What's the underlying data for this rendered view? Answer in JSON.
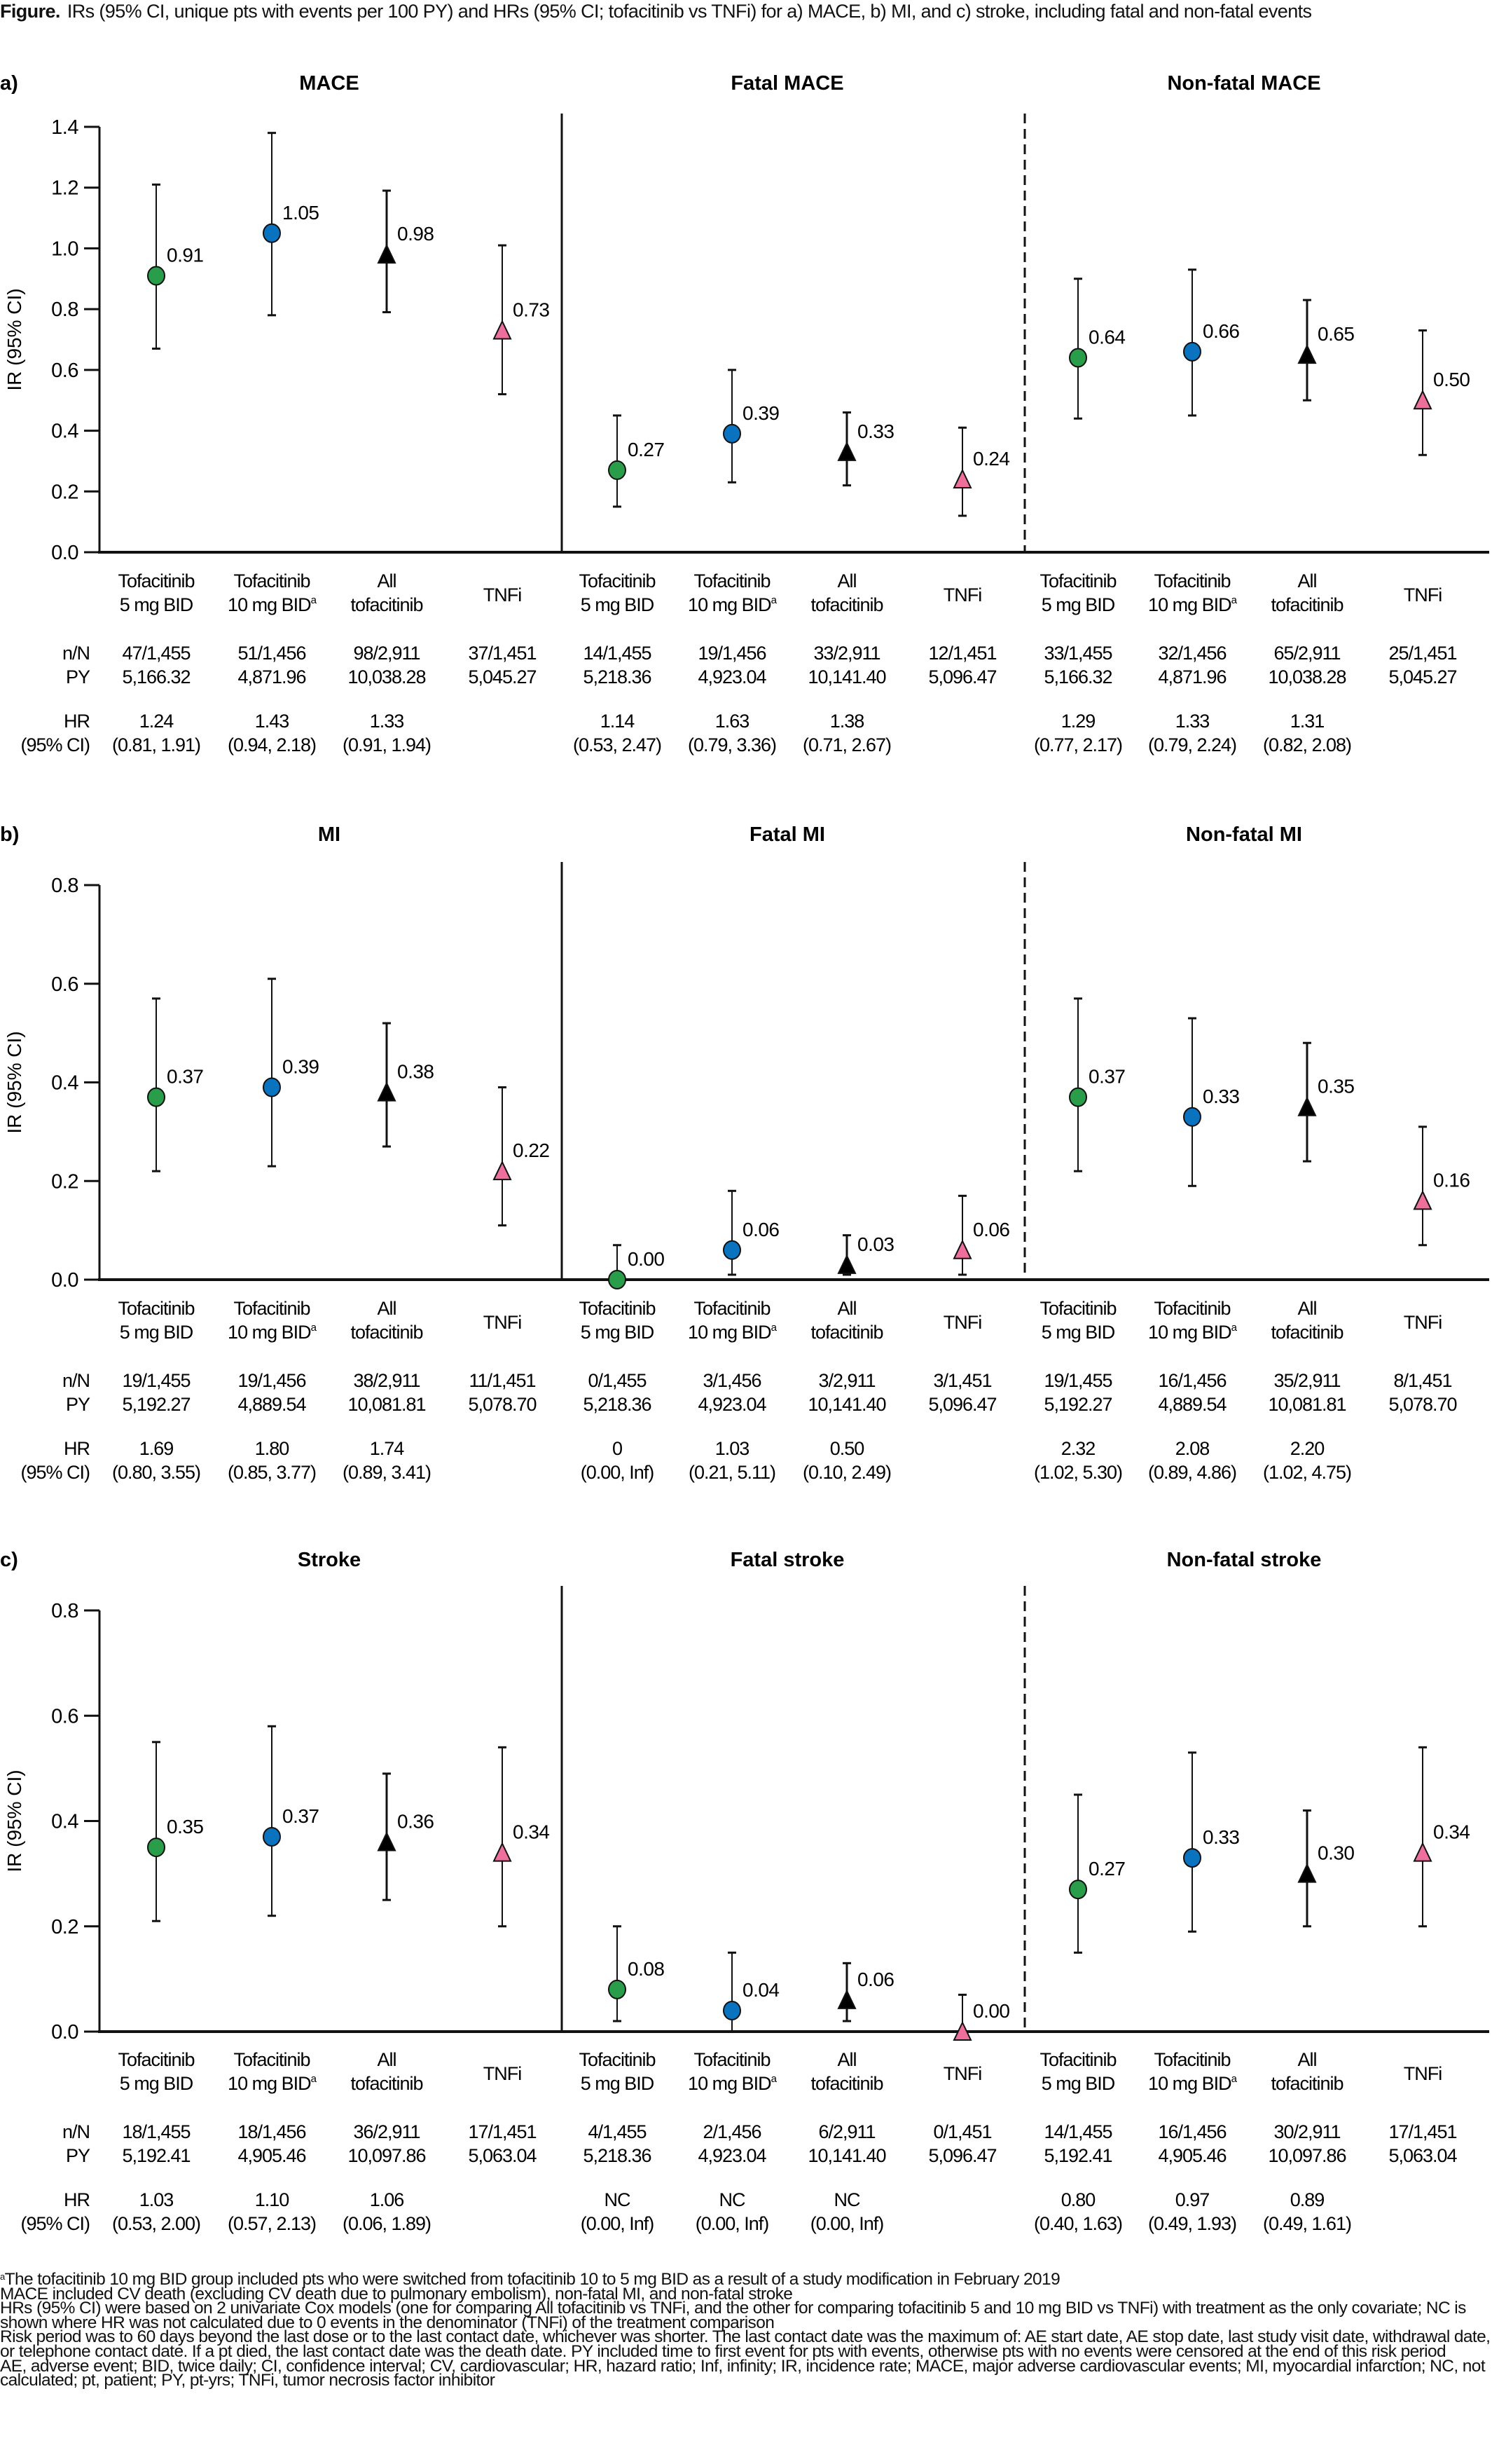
{
  "figure": {
    "label": "Figure.",
    "caption": "IRs (95% CI, unique pts with events per 100 PY) and HRs (95% CI; tofacitinib vs TNFi) for a) MACE, b) MI, and c) stroke, including fatal and non-fatal events"
  },
  "colors": {
    "tofa5": "#2a9d4a",
    "tofa10": "#0a73c0",
    "all_tofa": "#000000",
    "tnfi": "#ee6f9c"
  },
  "row_labels": {
    "nN": "n/N",
    "py": "PY",
    "hr": "HR",
    "ci": "(95% CI)"
  },
  "groups": [
    {
      "key": "tofa5",
      "line1": "Tofacitinib",
      "line2": "5 mg BID",
      "sup": "",
      "marker": "circle"
    },
    {
      "key": "tofa10",
      "line1": "Tofacitinib",
      "line2": "10 mg BID",
      "sup": "a",
      "marker": "circle"
    },
    {
      "key": "all_tofa",
      "line1": "All",
      "line2": "tofacitinib",
      "sup": "",
      "marker": "triangle"
    },
    {
      "key": "tnfi",
      "line1": "",
      "line2": "TNFi",
      "sup": "",
      "marker": "triangle"
    }
  ],
  "chart_data": [
    {
      "type": "scatter",
      "panel": "a)",
      "ylabel": "IR (95% CI)",
      "ylim": [
        0,
        1.4
      ],
      "yticks": [
        "0.0",
        "0.2",
        "0.4",
        "0.6",
        "0.8",
        "1.0",
        "1.2",
        "1.4"
      ],
      "grid": false,
      "subplots": [
        {
          "title": "MACE",
          "points": [
            {
              "group": "tofa5",
              "ir": 0.91,
              "label": "0.91",
              "lo": 0.67,
              "hi": 1.21,
              "nN": "47/1,455",
              "py": "5,166.32",
              "hr": "1.24",
              "ci": "(0.81, 1.91)"
            },
            {
              "group": "tofa10",
              "ir": 1.05,
              "label": "1.05",
              "lo": 0.78,
              "hi": 1.38,
              "nN": "51/1,456",
              "py": "4,871.96",
              "hr": "1.43",
              "ci": "(0.94, 2.18)"
            },
            {
              "group": "all_tofa",
              "ir": 0.98,
              "label": "0.98",
              "lo": 0.79,
              "hi": 1.19,
              "nN": "98/2,911",
              "py": "10,038.28",
              "hr": "1.33",
              "ci": "(0.91, 1.94)"
            },
            {
              "group": "tnfi",
              "ir": 0.73,
              "label": "0.73",
              "lo": 0.52,
              "hi": 1.01,
              "nN": "37/1,451",
              "py": "5,045.27",
              "hr": "",
              "ci": ""
            }
          ]
        },
        {
          "title": "Fatal MACE",
          "points": [
            {
              "group": "tofa5",
              "ir": 0.27,
              "label": "0.27",
              "lo": 0.15,
              "hi": 0.45,
              "nN": "14/1,455",
              "py": "5,218.36",
              "hr": "1.14",
              "ci": "(0.53, 2.47)"
            },
            {
              "group": "tofa10",
              "ir": 0.39,
              "label": "0.39",
              "lo": 0.23,
              "hi": 0.6,
              "nN": "19/1,456",
              "py": "4,923.04",
              "hr": "1.63",
              "ci": "(0.79, 3.36)"
            },
            {
              "group": "all_tofa",
              "ir": 0.33,
              "label": "0.33",
              "lo": 0.22,
              "hi": 0.46,
              "nN": "33/2,911",
              "py": "10,141.40",
              "hr": "1.38",
              "ci": "(0.71, 2.67)"
            },
            {
              "group": "tnfi",
              "ir": 0.24,
              "label": "0.24",
              "lo": 0.12,
              "hi": 0.41,
              "nN": "12/1,451",
              "py": "5,096.47",
              "hr": "",
              "ci": ""
            }
          ]
        },
        {
          "title": "Non-fatal MACE",
          "points": [
            {
              "group": "tofa5",
              "ir": 0.64,
              "label": "0.64",
              "lo": 0.44,
              "hi": 0.9,
              "nN": "33/1,455",
              "py": "5,166.32",
              "hr": "1.29",
              "ci": "(0.77, 2.17)"
            },
            {
              "group": "tofa10",
              "ir": 0.66,
              "label": "0.66",
              "lo": 0.45,
              "hi": 0.93,
              "nN": "32/1,456",
              "py": "4,871.96",
              "hr": "1.33",
              "ci": "(0.79, 2.24)"
            },
            {
              "group": "all_tofa",
              "ir": 0.65,
              "label": "0.65",
              "lo": 0.5,
              "hi": 0.83,
              "nN": "65/2,911",
              "py": "10,038.28",
              "hr": "1.31",
              "ci": "(0.82, 2.08)"
            },
            {
              "group": "tnfi",
              "ir": 0.5,
              "label": "0.50",
              "lo": 0.32,
              "hi": 0.73,
              "nN": "25/1,451",
              "py": "5,045.27",
              "hr": "",
              "ci": ""
            }
          ]
        }
      ]
    },
    {
      "type": "scatter",
      "panel": "b)",
      "ylabel": "IR (95% CI)",
      "ylim": [
        0,
        0.8
      ],
      "yticks": [
        "0.0",
        "0.2",
        "0.4",
        "0.6",
        "0.8"
      ],
      "grid": false,
      "subplots": [
        {
          "title": "MI",
          "points": [
            {
              "group": "tofa5",
              "ir": 0.37,
              "label": "0.37",
              "lo": 0.22,
              "hi": 0.57,
              "nN": "19/1,455",
              "py": "5,192.27",
              "hr": "1.69",
              "ci": "(0.80, 3.55)"
            },
            {
              "group": "tofa10",
              "ir": 0.39,
              "label": "0.39",
              "lo": 0.23,
              "hi": 0.61,
              "nN": "19/1,456",
              "py": "4,889.54",
              "hr": "1.80",
              "ci": "(0.85, 3.77)"
            },
            {
              "group": "all_tofa",
              "ir": 0.38,
              "label": "0.38",
              "lo": 0.27,
              "hi": 0.52,
              "nN": "38/2,911",
              "py": "10,081.81",
              "hr": "1.74",
              "ci": "(0.89, 3.41)"
            },
            {
              "group": "tnfi",
              "ir": 0.22,
              "label": "0.22",
              "lo": 0.11,
              "hi": 0.39,
              "nN": "11/1,451",
              "py": "5,078.70",
              "hr": "",
              "ci": ""
            }
          ]
        },
        {
          "title": "Fatal MI",
          "points": [
            {
              "group": "tofa5",
              "ir": 0.0,
              "label": "0.00",
              "lo": 0.0,
              "hi": 0.07,
              "nN": "0/1,455",
              "py": "5,218.36",
              "hr": "0",
              "ci": "(0.00, Inf)"
            },
            {
              "group": "tofa10",
              "ir": 0.06,
              "label": "0.06",
              "lo": 0.01,
              "hi": 0.18,
              "nN": "3/1,456",
              "py": "4,923.04",
              "hr": "1.03",
              "ci": "(0.21, 5.11)"
            },
            {
              "group": "all_tofa",
              "ir": 0.03,
              "label": "0.03",
              "lo": 0.01,
              "hi": 0.09,
              "nN": "3/2,911",
              "py": "10,141.40",
              "hr": "0.50",
              "ci": "(0.10, 2.49)"
            },
            {
              "group": "tnfi",
              "ir": 0.06,
              "label": "0.06",
              "lo": 0.01,
              "hi": 0.17,
              "nN": "3/1,451",
              "py": "5,096.47",
              "hr": "",
              "ci": ""
            }
          ]
        },
        {
          "title": "Non-fatal MI",
          "points": [
            {
              "group": "tofa5",
              "ir": 0.37,
              "label": "0.37",
              "lo": 0.22,
              "hi": 0.57,
              "nN": "19/1,455",
              "py": "5,192.27",
              "hr": "2.32",
              "ci": "(1.02, 5.30)"
            },
            {
              "group": "tofa10",
              "ir": 0.33,
              "label": "0.33",
              "lo": 0.19,
              "hi": 0.53,
              "nN": "16/1,456",
              "py": "4,889.54",
              "hr": "2.08",
              "ci": "(0.89, 4.86)"
            },
            {
              "group": "all_tofa",
              "ir": 0.35,
              "label": "0.35",
              "lo": 0.24,
              "hi": 0.48,
              "nN": "35/2,911",
              "py": "10,081.81",
              "hr": "2.20",
              "ci": "(1.02, 4.75)"
            },
            {
              "group": "tnfi",
              "ir": 0.16,
              "label": "0.16",
              "lo": 0.07,
              "hi": 0.31,
              "nN": "8/1,451",
              "py": "5,078.70",
              "hr": "",
              "ci": ""
            }
          ]
        }
      ]
    },
    {
      "type": "scatter",
      "panel": "c)",
      "ylabel": "IR (95% CI)",
      "ylim": [
        0,
        0.8
      ],
      "yticks": [
        "0.0",
        "0.2",
        "0.4",
        "0.6",
        "0.8"
      ],
      "grid": false,
      "subplots": [
        {
          "title": "Stroke",
          "points": [
            {
              "group": "tofa5",
              "ir": 0.35,
              "label": "0.35",
              "lo": 0.21,
              "hi": 0.55,
              "nN": "18/1,455",
              "py": "5,192.41",
              "hr": "1.03",
              "ci": "(0.53, 2.00)"
            },
            {
              "group": "tofa10",
              "ir": 0.37,
              "label": "0.37",
              "lo": 0.22,
              "hi": 0.58,
              "nN": "18/1,456",
              "py": "4,905.46",
              "hr": "1.10",
              "ci": "(0.57, 2.13)"
            },
            {
              "group": "all_tofa",
              "ir": 0.36,
              "label": "0.36",
              "lo": 0.25,
              "hi": 0.49,
              "nN": "36/2,911",
              "py": "10,097.86",
              "hr": "1.06",
              "ci": "(0.06, 1.89)"
            },
            {
              "group": "tnfi",
              "ir": 0.34,
              "label": "0.34",
              "lo": 0.2,
              "hi": 0.54,
              "nN": "17/1,451",
              "py": "5,063.04",
              "hr": "",
              "ci": ""
            }
          ]
        },
        {
          "title": "Fatal stroke",
          "points": [
            {
              "group": "tofa5",
              "ir": 0.08,
              "label": "0.08",
              "lo": 0.02,
              "hi": 0.2,
              "nN": "4/1,455",
              "py": "5,218.36",
              "hr": "NC",
              "ci": "(0.00, Inf)"
            },
            {
              "group": "tofa10",
              "ir": 0.04,
              "label": "0.04",
              "lo": 0.0,
              "hi": 0.15,
              "nN": "2/1,456",
              "py": "4,923.04",
              "hr": "NC",
              "ci": "(0.00, Inf)"
            },
            {
              "group": "all_tofa",
              "ir": 0.06,
              "label": "0.06",
              "lo": 0.02,
              "hi": 0.13,
              "nN": "6/2,911",
              "py": "10,141.40",
              "hr": "NC",
              "ci": "(0.00, Inf)"
            },
            {
              "group": "tnfi",
              "ir": 0.0,
              "label": "0.00",
              "lo": 0.0,
              "hi": 0.07,
              "nN": "0/1,451",
              "py": "5,096.47",
              "hr": "",
              "ci": ""
            }
          ]
        },
        {
          "title": "Non-fatal stroke",
          "points": [
            {
              "group": "tofa5",
              "ir": 0.27,
              "label": "0.27",
              "lo": 0.15,
              "hi": 0.45,
              "nN": "14/1,455",
              "py": "5,192.41",
              "hr": "0.80",
              "ci": "(0.40, 1.63)"
            },
            {
              "group": "tofa10",
              "ir": 0.33,
              "label": "0.33",
              "lo": 0.19,
              "hi": 0.53,
              "nN": "16/1,456",
              "py": "4,905.46",
              "hr": "0.97",
              "ci": "(0.49, 1.93)"
            },
            {
              "group": "all_tofa",
              "ir": 0.3,
              "label": "0.30",
              "lo": 0.2,
              "hi": 0.42,
              "nN": "30/2,911",
              "py": "10,097.86",
              "hr": "0.89",
              "ci": "(0.49, 1.61)"
            },
            {
              "group": "tnfi",
              "ir": 0.34,
              "label": "0.34",
              "lo": 0.2,
              "hi": 0.54,
              "nN": "17/1,451",
              "py": "5,063.04",
              "hr": "",
              "ci": ""
            }
          ]
        }
      ]
    }
  ],
  "footnotes": {
    "a_marker": "a",
    "a_text": "The tofacitinib 10 mg BID group included pts who were switched from tofacitinib 10 to 5 mg BID as a result of a study modification in February 2019",
    "lines": [
      "MACE included CV death (excluding CV death due to pulmonary embolism), non-fatal MI, and non-fatal stroke",
      "HRs (95% CI) were based on 2 univariate Cox models (one for comparing All tofacitinib vs TNFi, and the other for comparing tofacitinib 5 and 10 mg BID vs TNFi) with treatment as the only covariate; NC is shown where HR was not calculated due to 0 events in the denominator (TNFi) of the treatment comparison",
      "Risk period was to 60 days beyond the last dose or to the last contact date, whichever was shorter. The last contact date was the maximum of: AE start date, AE stop date, last study visit date, withdrawal date, or telephone contact date. If a pt died, the last contact date was the death date. PY included time to first event for pts with events, otherwise pts with no events were censored at the end of this risk period",
      "AE, adverse event; BID, twice daily; CI, confidence interval; CV, cardiovascular; HR, hazard ratio; Inf, infinity; IR, incidence rate; MACE, major adverse cardiovascular events; MI, myocardial infarction; NC, not calculated; pt, patient; PY, pt-yrs; TNFi, tumor necrosis factor inhibitor"
    ]
  }
}
